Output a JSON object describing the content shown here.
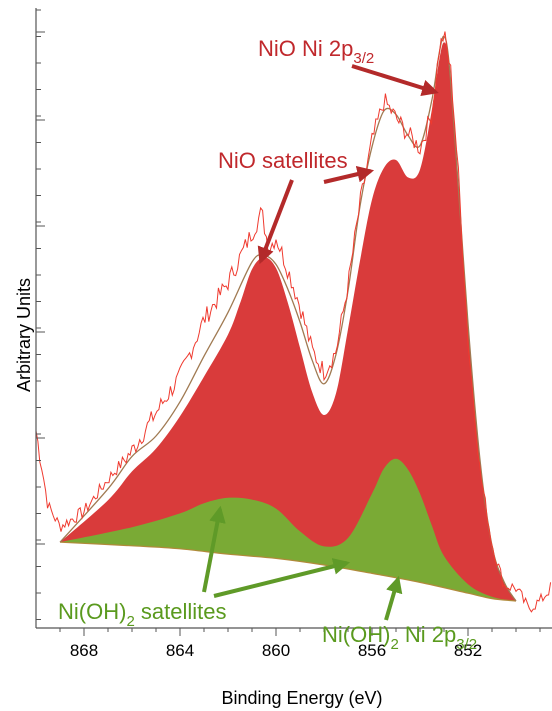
{
  "chart_data": {
    "type": "area",
    "title": "",
    "xlabel": "Binding Energy (eV)",
    "ylabel": "Arbitrary Units",
    "x_reversed": true,
    "xlim": [
      870,
      848.5
    ],
    "ylim": [
      0,
      100
    ],
    "x_ticks": [
      868,
      864,
      860,
      856,
      852
    ],
    "x_tick_labels": [
      "868",
      "864",
      "860",
      "856",
      "852"
    ],
    "grid": false,
    "colors": {
      "nio": "#d93b3b",
      "nioh2": "#7aaa35",
      "raw": "#ef3a2f",
      "envelope": "#a07a52",
      "annotation_red": "#c0282c",
      "annotation_green": "#5a9a1e",
      "arrow_red": "#b32a2a",
      "arrow_green": "#5f9a28"
    },
    "series": [
      {
        "role": "background",
        "x": [
          869,
          866,
          864,
          862,
          860,
          858,
          856,
          854,
          852,
          851,
          850
        ],
        "y": [
          16.3,
          15.7,
          15.2,
          14.3,
          13.6,
          12.5,
          11.1,
          9.6,
          7.8,
          6.9,
          6.5
        ]
      },
      {
        "name": "Ni(OH)2",
        "role": "component",
        "x": [
          869,
          866,
          864,
          863,
          862,
          861,
          860,
          859,
          858,
          857,
          856,
          855.5,
          855,
          854.5,
          854,
          853.5,
          853,
          852,
          851,
          850
        ],
        "y": [
          16.3,
          18.8,
          21.1,
          22.8,
          23.7,
          23.4,
          21.9,
          18.1,
          15.6,
          17.0,
          24.4,
          28.6,
          30.2,
          28.4,
          24.4,
          19.0,
          14.0,
          9.3,
          7.2,
          6.5
        ]
      },
      {
        "name": "NiO",
        "role": "component",
        "x": [
          869,
          867,
          866,
          865,
          864,
          863,
          862,
          861.5,
          861,
          860.5,
          860,
          859.5,
          859,
          858.5,
          858,
          857.5,
          857,
          856.5,
          856,
          855.5,
          855,
          854.5,
          854,
          853.5,
          853.2,
          853,
          852.8,
          852.5,
          852,
          851.5,
          851,
          850.5,
          850
        ],
        "y": [
          16.3,
          23.3,
          28.1,
          31.9,
          37.3,
          43.9,
          50.9,
          56.1,
          61.8,
          63.8,
          62.0,
          56.1,
          48.7,
          41.4,
          37.5,
          41.1,
          51.8,
          63.2,
          73.4,
          78.7,
          80.0,
          77.1,
          78.4,
          88.5,
          96.6,
          99.6,
          96.4,
          80.5,
          52.7,
          29.9,
          15.7,
          9.8,
          6.5
        ]
      },
      {
        "role": "envelope",
        "x": [
          869,
          867,
          866,
          865,
          864,
          863,
          862,
          861,
          860.5,
          860,
          859.5,
          859,
          858.5,
          858,
          857.5,
          857,
          856.5,
          856,
          855.5,
          855,
          854.5,
          854,
          853.5,
          853.2,
          853,
          852.8,
          852.5,
          852,
          851.5,
          851,
          850.5,
          850
        ],
        "y": [
          16.3,
          25.2,
          30.6,
          34.0,
          39.7,
          47.3,
          54.6,
          63.0,
          64.1,
          62.6,
          58.4,
          53.0,
          46.7,
          42.7,
          47.6,
          58.2,
          72.3,
          82.2,
          88.2,
          87.6,
          84.1,
          82.4,
          90.1,
          97.8,
          100.6,
          96.6,
          81.1,
          52.8,
          30.0,
          15.7,
          9.7,
          6.5
        ]
      },
      {
        "role": "raw",
        "x": [
          870,
          869.5,
          869,
          868,
          867,
          866,
          865,
          864,
          863,
          862,
          861,
          860.6,
          860.3,
          860,
          859.5,
          859,
          858.5,
          858,
          857.5,
          857,
          856.5,
          856,
          855.5,
          855,
          854.5,
          854,
          853.5,
          853.2,
          853,
          852.7,
          852.4,
          852,
          851.5,
          851,
          850.5,
          850,
          849.5,
          849,
          848.5
        ],
        "y": [
          34.9,
          22.4,
          18.9,
          21.4,
          26.8,
          31.5,
          37.9,
          43.9,
          53.4,
          59.6,
          67.9,
          71.3,
          65.2,
          67.2,
          61.7,
          55.7,
          48.3,
          44.7,
          48.1,
          59.1,
          72.7,
          83.1,
          89.9,
          87.0,
          84.3,
          82.0,
          87.8,
          98.4,
          101.0,
          94.3,
          77.5,
          49.8,
          28.1,
          16.0,
          9.1,
          8.7,
          5.3,
          6.4,
          9.0
        ]
      }
    ],
    "annotations": [
      {
        "name": "nio-2p",
        "base": "NiO Ni 2p",
        "sub": "3/2",
        "target_x": 853.1,
        "target_y": 99.0
      },
      {
        "name": "nio-satellites",
        "text": "NiO satellites",
        "targets": [
          [
            860.8,
            63.5
          ],
          [
            855.8,
            78.5
          ]
        ]
      },
      {
        "name": "nioh2-satellites",
        "base": "Ni(OH)",
        "sub2": "2",
        "text": " satellites",
        "targets": [
          [
            862.5,
            20.5
          ],
          [
            856.8,
            13.5
          ]
        ]
      },
      {
        "name": "nioh2-2p",
        "base": "Ni(OH)",
        "sub2": "2",
        "mid": " Ni 2p",
        "sub": "3/2",
        "target_x": 855.0,
        "target_y": 9.5
      }
    ]
  }
}
